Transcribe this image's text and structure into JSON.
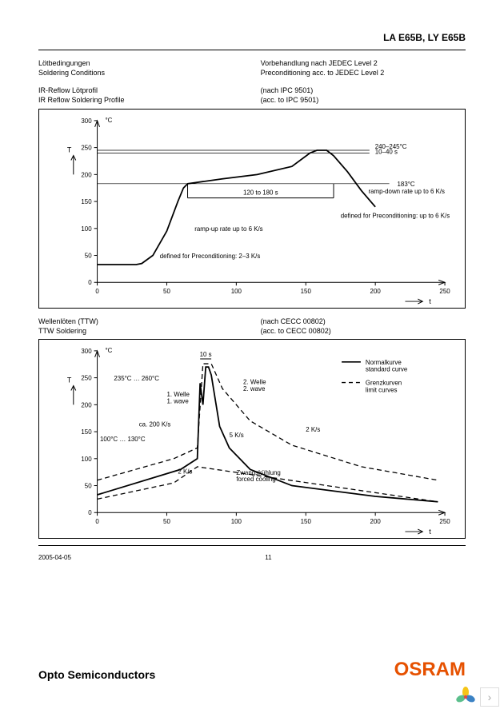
{
  "header": {
    "title": "LA E65B, LY E65B"
  },
  "sections": {
    "soldering": {
      "left_de": "Lötbedingungen",
      "left_en": "Soldering Conditions",
      "right_de": "Vorbehandlung nach JEDEC Level 2",
      "right_en": "Preconditioning acc. to JEDEC Level 2"
    },
    "ir_reflow": {
      "left_de": "IR-Reflow Lötprofil",
      "left_en": "IR Reflow Soldering Profile",
      "right_de": "(nach IPC 9501)",
      "right_en": "(acc. to IPC 9501)"
    },
    "ttw": {
      "left_de": "Wellenlöten (TTW)",
      "left_en": "TTW Soldering",
      "right_de": "(nach CECC 00802)",
      "right_en": "(acc. to CECC 00802)"
    }
  },
  "chart1": {
    "type": "line",
    "y_unit": "°C",
    "y_symbol": "T",
    "x_symbol": "t",
    "xlim": [
      0,
      250
    ],
    "xtick_step": 50,
    "ylim": [
      0,
      300
    ],
    "ytick_step": 50,
    "grid_color": "#bfbfbf",
    "axis_color": "#000000",
    "curve_color": "#000000",
    "guide_183": 183,
    "guide_240": 240,
    "guide_245": 245,
    "curve": [
      [
        0,
        33
      ],
      [
        28,
        33
      ],
      [
        32,
        35
      ],
      [
        40,
        50
      ],
      [
        50,
        95
      ],
      [
        58,
        150
      ],
      [
        62,
        175
      ],
      [
        65,
        183
      ],
      [
        90,
        192
      ],
      [
        115,
        200
      ],
      [
        140,
        215
      ],
      [
        153,
        240
      ],
      [
        158,
        245
      ],
      [
        165,
        245
      ],
      [
        170,
        235
      ],
      [
        180,
        205
      ],
      [
        190,
        170
      ],
      [
        200,
        140
      ]
    ],
    "annots": {
      "peak": "240–245°C\n10–40 s",
      "g183": "183°C",
      "span": "120 to 180 s",
      "rampup": "ramp-up rate up to 6 K/s",
      "precon_up": "defined for Preconditioning: 2–3 K/s",
      "rampdn": "ramp-down rate up to 6 K/s",
      "precon_dn": "defined for Preconditioning: up to 6 K/s"
    }
  },
  "chart2": {
    "type": "line",
    "y_unit": "°C",
    "y_symbol": "T",
    "x_symbol": "t",
    "xlim": [
      0,
      250
    ],
    "xtick_step": 50,
    "ylim": [
      0,
      300
    ],
    "ytick_step": 50,
    "grid_color": "#bfbfbf",
    "axis_color": "#000000",
    "solid_color": "#000000",
    "dash_color": "#000000",
    "peak_label": "10 s",
    "legend": {
      "solid_de": "Normalkurve",
      "solid_en": "standard curve",
      "dash_de": "Grenzkurven",
      "dash_en": "limit curves"
    },
    "solid_curve": [
      [
        0,
        33
      ],
      [
        60,
        80
      ],
      [
        72,
        100
      ],
      [
        74,
        240
      ],
      [
        76,
        200
      ],
      [
        78,
        270
      ],
      [
        80,
        270
      ],
      [
        82,
        255
      ],
      [
        88,
        160
      ],
      [
        95,
        120
      ],
      [
        110,
        80
      ],
      [
        140,
        50
      ],
      [
        200,
        30
      ],
      [
        245,
        20
      ]
    ],
    "dash_upper": [
      [
        0,
        60
      ],
      [
        55,
        100
      ],
      [
        72,
        120
      ],
      [
        76,
        276
      ],
      [
        82,
        276
      ],
      [
        90,
        230
      ],
      [
        110,
        170
      ],
      [
        140,
        125
      ],
      [
        190,
        85
      ],
      [
        245,
        60
      ]
    ],
    "dash_lower": [
      [
        0,
        25
      ],
      [
        55,
        55
      ],
      [
        72,
        85
      ],
      [
        245,
        20
      ]
    ],
    "annots": {
      "temp_range": "235°C … 260°C",
      "preheat": "100°C … 130°C",
      "ca200": "ca. 200 K/s",
      "w1_de": "1. Welle",
      "w1_en": "1. wave",
      "w2_de": "2. Welle",
      "w2_en": "2. wave",
      "k5": "5 K/s",
      "k2a": "2 K/s",
      "k2b": "2 K/s",
      "forced_de": "Zwangskühlung",
      "forced_en": "forced cooling"
    }
  },
  "footer": {
    "date": "2005-04-05",
    "page": "11"
  },
  "brand": {
    "left": "Opto Semiconductors",
    "right": "OSRAM",
    "right_color": "#e65100"
  }
}
